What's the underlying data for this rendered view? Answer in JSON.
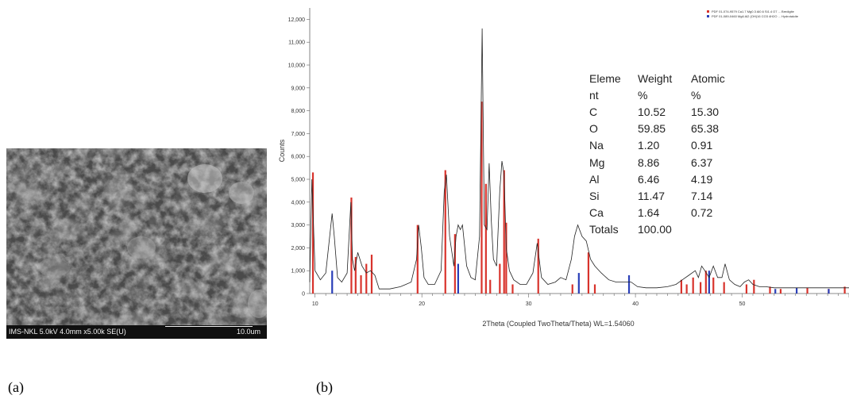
{
  "panels": {
    "a": "(a)",
    "b": "(b)"
  },
  "sem": {
    "info_text": "IMS-NKL 5.0kV 4.0mm x5.00k SE(U)",
    "scale_text": "10.0um"
  },
  "chart_data": {
    "type": "line",
    "title": "",
    "xlabel": "2Theta (Coupled TwoTheta/Theta) WL=1.54060",
    "ylabel": "Counts",
    "xlim": [
      9.5,
      60
    ],
    "ylim": [
      0,
      12500
    ],
    "x_ticks": [
      10,
      20,
      30,
      40,
      50
    ],
    "y_ticks": [
      0,
      1000,
      2000,
      3000,
      4000,
      5000,
      6000,
      7000,
      8000,
      9000,
      10000,
      11000,
      12000
    ],
    "y_tick_labels": [
      "0",
      "1,000",
      "2,000",
      "3,000",
      "4,000",
      "5,000",
      "6,000",
      "7,000",
      "8,000",
      "9,000",
      "10,000",
      "11,000",
      "12,000"
    ],
    "legend_entries": [
      "PDF 01-074-9579 Ca1.7 Mg0.3 Al0.6 Si1.4 O7 ... Bredigite",
      "PDF 01-089-0460 Mg6 Al2 (OH)16 CO3 4H2O ... Hydrotalcite"
    ],
    "legend_position": "top-right",
    "grid": false,
    "series": [
      {
        "color": "#222222",
        "x": [
          9.5,
          9.7,
          10.0,
          10.5,
          11.0,
          11.3,
          11.6,
          11.8,
          12.1,
          12.5,
          13.0,
          13.35,
          13.5,
          13.7,
          14.0,
          14.4,
          14.8,
          15.2,
          15.6,
          16.0,
          17.0,
          18.0,
          19.0,
          19.5,
          19.7,
          19.95,
          20.2,
          20.6,
          21.2,
          21.8,
          22.1,
          22.3,
          22.6,
          23.0,
          23.2,
          23.4,
          23.6,
          23.8,
          24.2,
          24.6,
          25.0,
          25.4,
          25.65,
          25.85,
          26.1,
          26.3,
          26.5,
          26.7,
          27.0,
          27.3,
          27.5,
          27.7,
          27.9,
          28.2,
          28.6,
          29.2,
          29.8,
          30.4,
          30.8,
          31.2,
          31.8,
          32.5,
          33.0,
          33.5,
          34.0,
          34.3,
          34.6,
          35.0,
          35.4,
          35.8,
          36.2,
          36.8,
          37.5,
          38.2,
          39.0,
          39.6,
          40.2,
          41.0,
          42.0,
          43.0,
          43.8,
          44.4,
          45.0,
          45.6,
          45.9,
          46.2,
          46.5,
          46.9,
          47.3,
          47.7,
          48.1,
          48.4,
          48.8,
          49.3,
          49.8,
          50.2,
          50.6,
          51.0,
          51.6,
          52.2,
          53.0,
          54.0,
          55.0,
          56.0,
          57.0,
          58.0,
          59.0,
          60.0
        ],
        "values": [
          500,
          5000,
          1000,
          600,
          900,
          2200,
          3500,
          2500,
          700,
          500,
          900,
          4000,
          1500,
          1000,
          1800,
          1200,
          900,
          1000,
          800,
          200,
          200,
          300,
          500,
          1500,
          3000,
          2000,
          700,
          400,
          400,
          1000,
          4500,
          5200,
          2500,
          1200,
          2500,
          3000,
          2800,
          3000,
          1200,
          700,
          600,
          2500,
          11600,
          3000,
          2800,
          5700,
          3200,
          1500,
          1200,
          4500,
          5800,
          5200,
          2000,
          1000,
          600,
          400,
          400,
          900,
          2200,
          700,
          400,
          500,
          700,
          600,
          1500,
          2500,
          3000,
          2500,
          2300,
          1500,
          1200,
          900,
          600,
          500,
          500,
          500,
          300,
          250,
          250,
          300,
          400,
          600,
          800,
          1000,
          700,
          1200,
          1000,
          700,
          1200,
          700,
          700,
          1300,
          600,
          400,
          300,
          500,
          600,
          400,
          300,
          300,
          250,
          250,
          250,
          250,
          250,
          250,
          250,
          250
        ]
      },
      {
        "name": "PDF 01-074-9579 Ca1.7 Mg0.3 Al0.6 Si1.4 O7 ... Bredigite",
        "type": "stick",
        "color": "#d8332c",
        "x": [
          9.8,
          13.4,
          13.8,
          14.3,
          14.8,
          15.3,
          19.6,
          22.2,
          23.1,
          25.6,
          26.0,
          26.4,
          27.3,
          27.7,
          27.9,
          28.5,
          30.9,
          34.1,
          35.6,
          36.2,
          44.3,
          44.8,
          45.4,
          46.1,
          46.6,
          47.3,
          48.3,
          50.4,
          51.1,
          52.6,
          53.6,
          56.1,
          58.1,
          59.6
        ],
        "values": [
          5300,
          4200,
          1600,
          800,
          1300,
          1700,
          3000,
          5400,
          2600,
          8400,
          4800,
          600,
          1300,
          5400,
          3100,
          400,
          2400,
          400,
          1800,
          400,
          600,
          400,
          700,
          500,
          1000,
          700,
          500,
          400,
          600,
          300,
          200,
          250,
          200,
          300
        ]
      },
      {
        "name": "PDF 01-089-0460 Mg6 Al2 (OH)16 CO3 4H2O ... Hydrotalcite",
        "type": "stick",
        "color": "#2a3fb8",
        "x": [
          11.6,
          23.4,
          34.7,
          39.4,
          46.9,
          53.1,
          55.1,
          58.1
        ],
        "values": [
          1000,
          1300,
          900,
          800,
          1000,
          200,
          250,
          200
        ]
      }
    ]
  },
  "eds_table": {
    "header_line1": [
      "Eleme",
      "Weight",
      "Atomic"
    ],
    "header_line2": [
      "nt",
      "%",
      "%"
    ],
    "rows": [
      [
        "C",
        "10.52",
        "15.30"
      ],
      [
        "O",
        "59.85",
        "65.38"
      ],
      [
        "Na",
        "1.20",
        "0.91"
      ],
      [
        "Mg",
        "8.86",
        "6.37"
      ],
      [
        "Al",
        "6.46",
        "4.19"
      ],
      [
        "Si",
        "11.47",
        "7.14"
      ],
      [
        "Ca",
        "1.64",
        "0.72"
      ],
      [
        "Totals",
        "100.00",
        ""
      ]
    ]
  }
}
